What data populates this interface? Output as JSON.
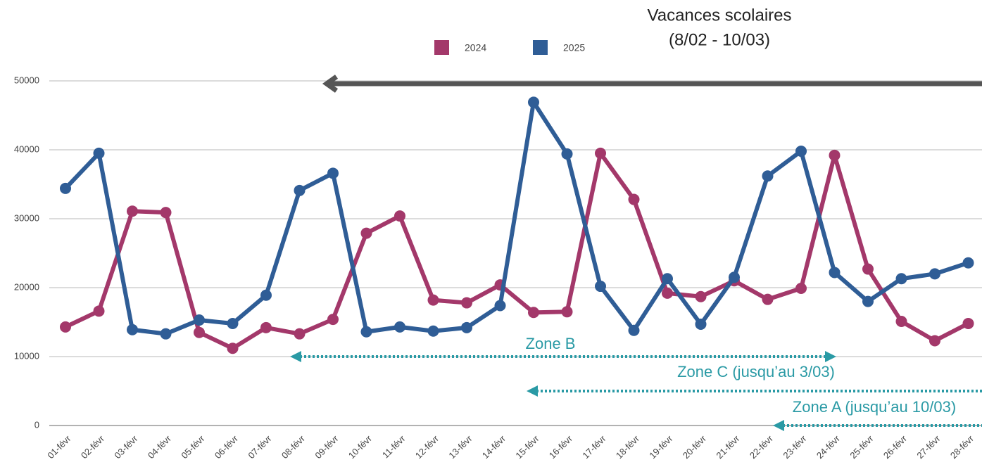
{
  "chart_data": {
    "type": "line",
    "categories": [
      "01-févr",
      "02-févr",
      "03-févr",
      "04-févr",
      "05-févr",
      "06-févr",
      "07-févr",
      "08-févr",
      "09-févr",
      "10-févr",
      "11-févr",
      "12-févr",
      "13-févr",
      "14-févr",
      "15-févr",
      "16-févr",
      "17-févr",
      "18-févr",
      "19-févr",
      "20-févr",
      "21-févr",
      "22-févr",
      "23-févr",
      "24-févr",
      "25-févr",
      "26-févr",
      "27-févr",
      "28-févr"
    ],
    "series": [
      {
        "name": "2024",
        "color": "#a3386a",
        "values": [
          14300,
          16600,
          31100,
          30900,
          13500,
          11200,
          14200,
          13300,
          15400,
          27900,
          30400,
          18200,
          17800,
          20400,
          16400,
          16500,
          39500,
          32800,
          19200,
          18700,
          21000,
          18300,
          19900,
          39200,
          22700,
          15100,
          12300,
          14800
        ]
      },
      {
        "name": "2025",
        "color": "#2f5d96",
        "values": [
          34400,
          39500,
          13900,
          13300,
          15300,
          14800,
          18900,
          34100,
          36600,
          13600,
          14300,
          13700,
          14200,
          17400,
          46900,
          39400,
          20200,
          13800,
          21300,
          14700,
          21500,
          36200,
          39800,
          22200,
          18000,
          21300,
          22000,
          23600
        ]
      }
    ],
    "ylim": [
      0,
      50000
    ],
    "yticks": [
      0,
      10000,
      20000,
      30000,
      40000,
      50000
    ],
    "grid": true,
    "annotations": {
      "vacances": [
        "Vacances scolaires",
        "(8/02 - 10/03)"
      ],
      "zones": [
        "Zone B",
        "Zone C (jusqu’au 3/03)",
        "Zone A (jusqu’au 10/03)"
      ]
    }
  }
}
